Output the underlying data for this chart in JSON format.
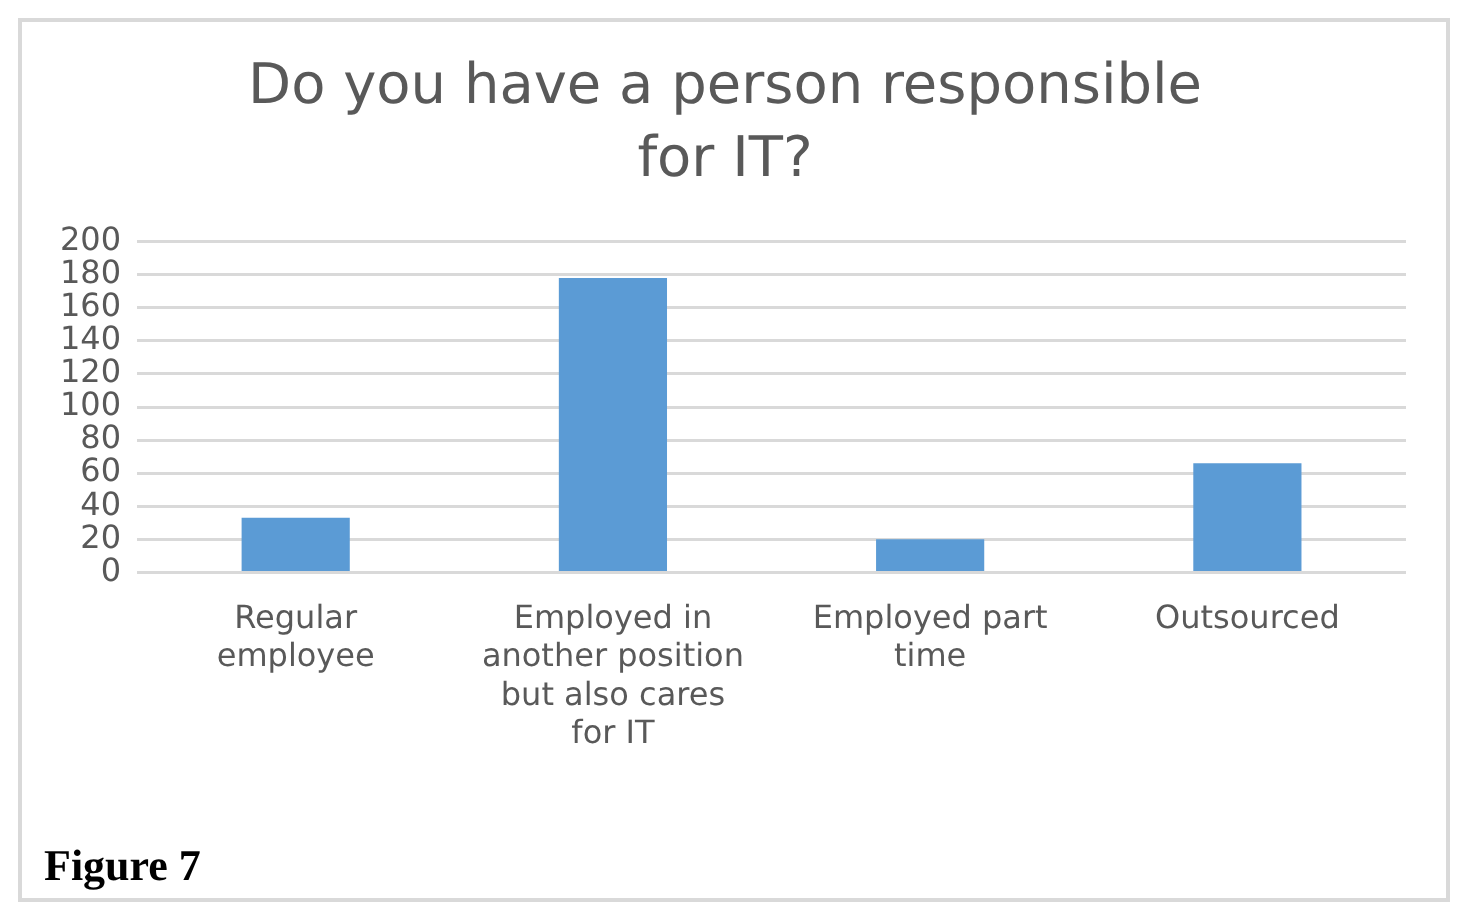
{
  "chart_data": {
    "type": "bar",
    "title": "Do you have a person responsible for IT?",
    "categories": [
      "Regular employee",
      "Employed in another position but also cares for IT",
      "Employed part time",
      "Outsourced"
    ],
    "values": [
      33,
      178,
      20,
      66
    ],
    "color": "#5b9bd5",
    "ylim": [
      0,
      200
    ],
    "yticks": [
      0,
      20,
      40,
      60,
      80,
      100,
      120,
      140,
      160,
      180,
      200
    ],
    "grid": "y",
    "annotations": [
      "Figure 7"
    ]
  }
}
